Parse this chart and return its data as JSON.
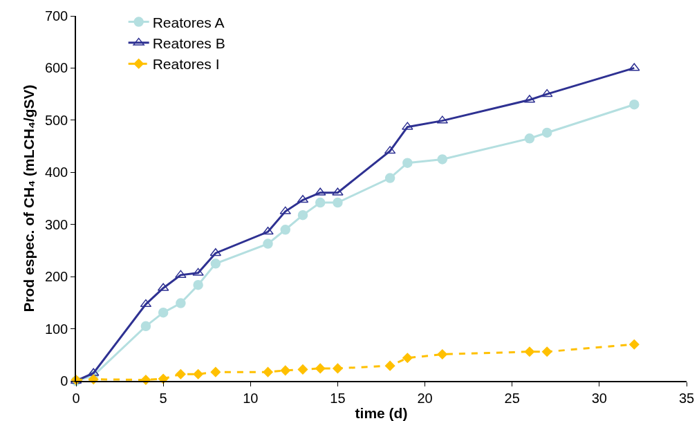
{
  "chart_data": {
    "type": "line",
    "xlabel": "time (d)",
    "ylabel": "Prod espec. of CH₄ (mLCH₄/gSV)",
    "x": [
      0,
      1,
      4,
      5,
      6,
      7,
      8,
      11,
      12,
      13,
      14,
      15,
      18,
      19,
      21,
      26,
      27,
      32
    ],
    "series": [
      {
        "name": "Reatores A",
        "color": "#b4dfe0",
        "marker": "circle",
        "line_style": "solid",
        "values": [
          0,
          10,
          105,
          131,
          149,
          184,
          225,
          263,
          290,
          318,
          342,
          342,
          389,
          418,
          425,
          465,
          476,
          530
        ]
      },
      {
        "name": "Reatores B",
        "color": "#2e3192",
        "marker": "triangle",
        "line_style": "solid",
        "values": [
          0,
          15,
          147,
          178,
          203,
          207,
          245,
          286,
          325,
          347,
          361,
          361,
          441,
          487,
          499,
          539,
          550,
          600
        ]
      },
      {
        "name": "Reatores I",
        "color": "#ffc000",
        "marker": "diamond",
        "line_style": "dashed",
        "values": [
          2,
          3,
          2,
          4,
          13,
          13,
          17,
          17,
          20,
          22,
          24,
          24,
          29,
          44,
          51,
          56,
          56,
          70
        ]
      }
    ],
    "xlim": [
      0,
      35
    ],
    "xticks": [
      0,
      5,
      10,
      15,
      20,
      25,
      30,
      35
    ],
    "ylim": [
      0,
      700
    ],
    "yticks": [
      0,
      100,
      200,
      300,
      400,
      500,
      600,
      700
    ],
    "grid": false,
    "legend": "top left"
  }
}
